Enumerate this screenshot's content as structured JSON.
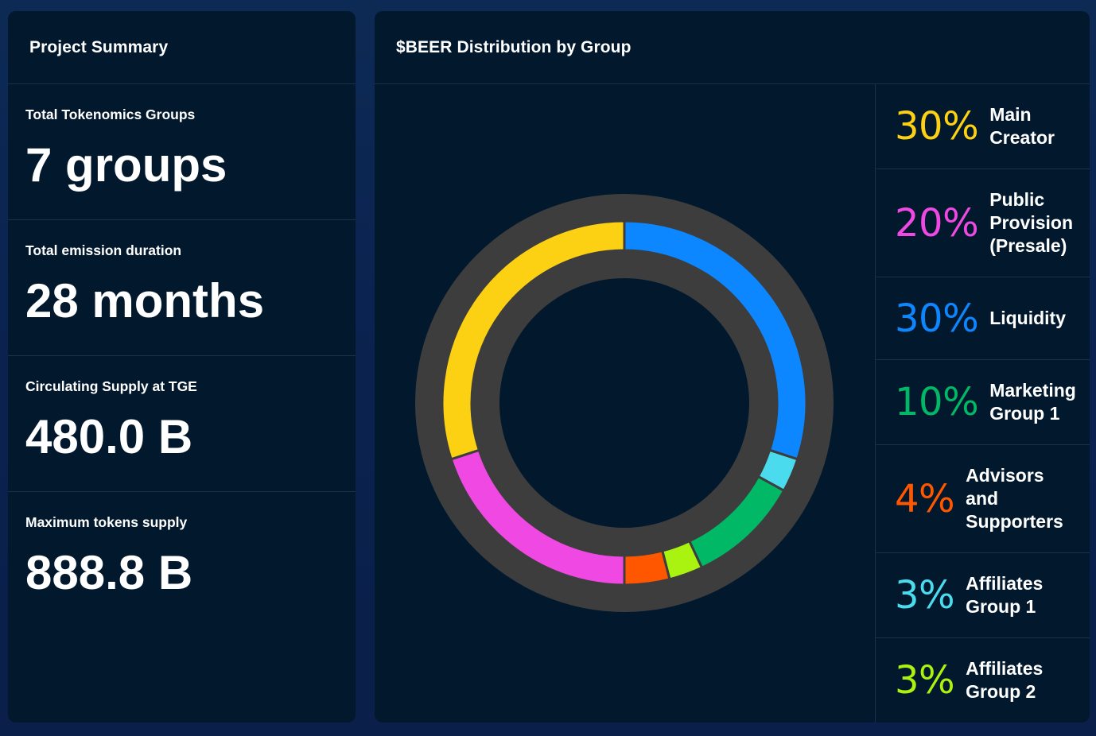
{
  "summary": {
    "title": "Project Summary",
    "stats": [
      {
        "label": "Total Tokenomics Groups",
        "value": "7 groups"
      },
      {
        "label": "Total emission duration",
        "value": "28 months"
      },
      {
        "label": "Circulating Supply at TGE",
        "value": "480.0 B"
      },
      {
        "label": "Maximum tokens supply",
        "value": "888.8 B"
      }
    ]
  },
  "distribution": {
    "title": "$BEER Distribution by Group",
    "legend": [
      {
        "pct": "30%",
        "name": "Main Creator",
        "color": "#fcd013"
      },
      {
        "pct": "20%",
        "name": "Public Provision (Presale)",
        "color": "#f049e3"
      },
      {
        "pct": "30%",
        "name": "Liquidity",
        "color": "#0d87ff"
      },
      {
        "pct": "10%",
        "name": "Marketing Group 1",
        "color": "#01b867"
      },
      {
        "pct": "4%",
        "name": "Advisors and Supporters",
        "color": "#ff5700"
      },
      {
        "pct": "3%",
        "name": "Affiliates Group 1",
        "color": "#4adcee"
      },
      {
        "pct": "3%",
        "name": "Affiliates Group 2",
        "color": "#aaf20f"
      }
    ]
  },
  "chart_data": {
    "type": "pie",
    "title": "$BEER Distribution by Group",
    "series": [
      {
        "name": "Liquidity",
        "value": 30,
        "color": "#0d87ff"
      },
      {
        "name": "Affiliates Group 1",
        "value": 3,
        "color": "#4adcee"
      },
      {
        "name": "Marketing Group 1",
        "value": 10,
        "color": "#01b867"
      },
      {
        "name": "Affiliates Group 2",
        "value": 3,
        "color": "#aaf20f"
      },
      {
        "name": "Advisors and Supporters",
        "value": 4,
        "color": "#ff5700"
      },
      {
        "name": "Public Provision (Presale)",
        "value": 20,
        "color": "#f049e3"
      },
      {
        "name": "Main Creator",
        "value": 30,
        "color": "#fcd013"
      }
    ],
    "style": "donut",
    "ring_color": "#3d3d3d"
  }
}
